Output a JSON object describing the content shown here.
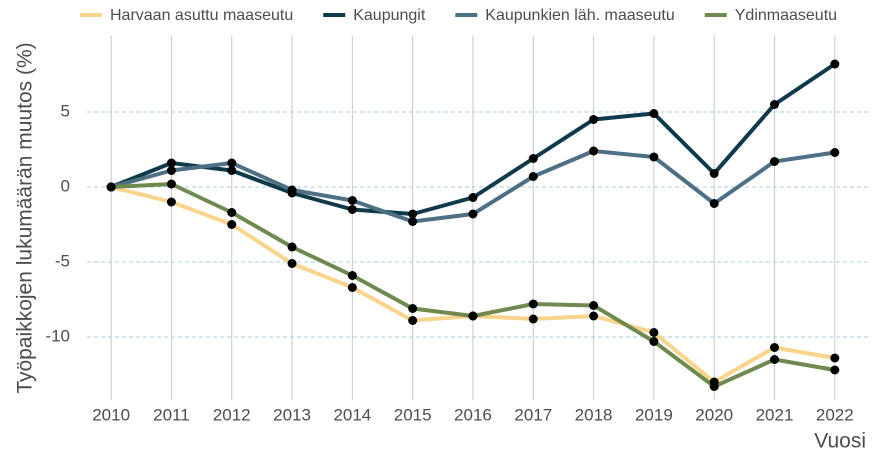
{
  "chart_data": {
    "type": "line",
    "ylabel": "Työpaikkojen lukumäärän muutos (%)",
    "xlabel": "Vuosi",
    "x": [
      2010,
      2011,
      2012,
      2013,
      2014,
      2015,
      2016,
      2017,
      2018,
      2019,
      2020,
      2021,
      2022
    ],
    "series": [
      {
        "name": "Harvaan asuttu maaseutu",
        "color": "#f9d48a",
        "values": [
          0,
          -1.0,
          -2.5,
          -5.1,
          -6.7,
          -8.9,
          -8.6,
          -8.8,
          -8.6,
          -9.7,
          -13.0,
          -10.7,
          -11.4
        ]
      },
      {
        "name": "Kaupungit",
        "color": "#0e3a4c",
        "values": [
          0,
          1.6,
          1.1,
          -0.4,
          -1.5,
          -1.8,
          -0.7,
          1.9,
          4.5,
          4.9,
          0.9,
          5.5,
          8.2
        ]
      },
      {
        "name": "Kaupunkien läh. maaseutu",
        "color": "#4e7084",
        "values": [
          0,
          1.1,
          1.6,
          -0.2,
          -0.9,
          -2.3,
          -1.8,
          0.7,
          2.4,
          2.0,
          -1.1,
          1.7,
          2.3
        ]
      },
      {
        "name": "Ydinmaaseutu",
        "color": "#6f8a4f",
        "values": [
          0,
          0.2,
          -1.7,
          -4.0,
          -5.9,
          -8.1,
          -8.6,
          -7.8,
          -7.9,
          -10.3,
          -13.3,
          -11.5,
          -12.2
        ]
      }
    ],
    "xlim": [
      2009.6,
      2022.6
    ],
    "xticks": [
      2010,
      2011,
      2012,
      2013,
      2014,
      2015,
      2016,
      2017,
      2018,
      2019,
      2020,
      2021,
      2022
    ],
    "ylim": [
      -14.2,
      10.1
    ],
    "yticks": [
      -10,
      -5,
      0,
      5
    ],
    "grid": true,
    "legend": "top",
    "marker_color": "#000000"
  }
}
